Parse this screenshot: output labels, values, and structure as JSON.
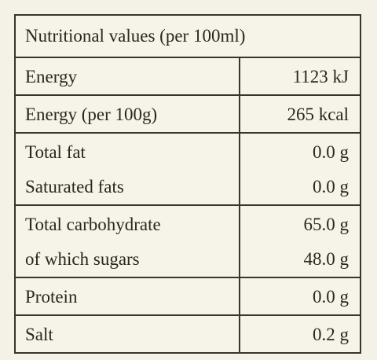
{
  "table": {
    "title": "Nutritional values (per 100ml)",
    "groups": [
      [
        [
          "Energy",
          "1123 kJ"
        ]
      ],
      [
        [
          "Energy (per 100g)",
          "265 kcal"
        ]
      ],
      [
        [
          "Total fat",
          "0.0 g"
        ],
        [
          "Saturated fats",
          "0.0 g"
        ]
      ],
      [
        [
          "Total carbohydrate",
          "65.0 g"
        ],
        [
          "of which sugars",
          "48.0 g"
        ]
      ],
      [
        [
          "Protein",
          "0.0 g"
        ]
      ],
      [
        [
          "Salt",
          "0.2 g"
        ]
      ]
    ]
  }
}
